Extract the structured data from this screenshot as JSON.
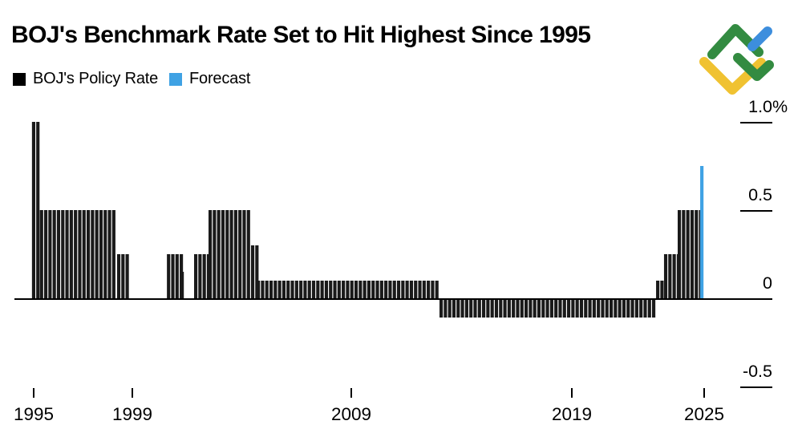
{
  "title": "BOJ's Benchmark Rate Set to Hit Highest Since 1995",
  "legend": [
    {
      "label": "BOJ's Policy Rate",
      "color": "#000000"
    },
    {
      "label": "Forecast",
      "color": "#3fa2e4"
    }
  ],
  "logo": {
    "name": "litefinance-logo",
    "colors": {
      "green": "#338b41",
      "yellow": "#f0c231",
      "blue": "#3d8edd"
    }
  },
  "chart_data": {
    "type": "bar",
    "title": "BOJ's Benchmark Rate Set to Hit Highest Since 1995",
    "unit": "%",
    "ylabel": "",
    "xlabel": "",
    "ylim": [
      -0.75,
      1.1
    ],
    "grid": "off",
    "legend_position": "top-left",
    "y_axis": {
      "ticks": [
        {
          "label": "1.0",
          "suffix": "%",
          "value": 1.0
        },
        {
          "label": "0.5",
          "suffix": "",
          "value": 0.5
        },
        {
          "label": "0",
          "suffix": "",
          "value": 0.0
        },
        {
          "label": "-0.5",
          "suffix": "",
          "value": -0.5
        }
      ]
    },
    "x_axis": {
      "tick_years": [
        1995,
        1999,
        2009,
        2019,
        2025
      ]
    },
    "series": [
      {
        "name": "BOJ's Policy Rate",
        "color": "#1a1a1a",
        "segments": [
          {
            "start": 1994.93,
            "end": 1995.25,
            "value": 1.0
          },
          {
            "start": 1995.25,
            "end": 1998.38,
            "value": 0.5
          },
          {
            "start": 1998.38,
            "end": 1998.84,
            "value": 0.25
          },
          {
            "start": 2000.58,
            "end": 2001.2,
            "value": 0.25
          },
          {
            "start": 2001.2,
            "end": 2001.38,
            "value": 0.15
          },
          {
            "start": 2001.82,
            "end": 2002.48,
            "value": 0.25
          },
          {
            "start": 2002.48,
            "end": 2004.42,
            "value": 0.5
          },
          {
            "start": 2004.42,
            "end": 2004.68,
            "value": 0.3
          },
          {
            "start": 2004.68,
            "end": 2013.0,
            "value": 0.1
          },
          {
            "start": 2013.0,
            "end": 2022.82,
            "value": -0.1
          },
          {
            "start": 2022.82,
            "end": 2023.18,
            "value": 0.1
          },
          {
            "start": 2023.18,
            "end": 2023.8,
            "value": 0.25
          },
          {
            "start": 2023.8,
            "end": 2024.82,
            "value": 0.5
          }
        ]
      },
      {
        "name": "Forecast",
        "color": "#3fa2e4",
        "segments": [
          {
            "start": 2024.82,
            "end": 2024.96,
            "value": 0.75
          }
        ]
      }
    ]
  }
}
